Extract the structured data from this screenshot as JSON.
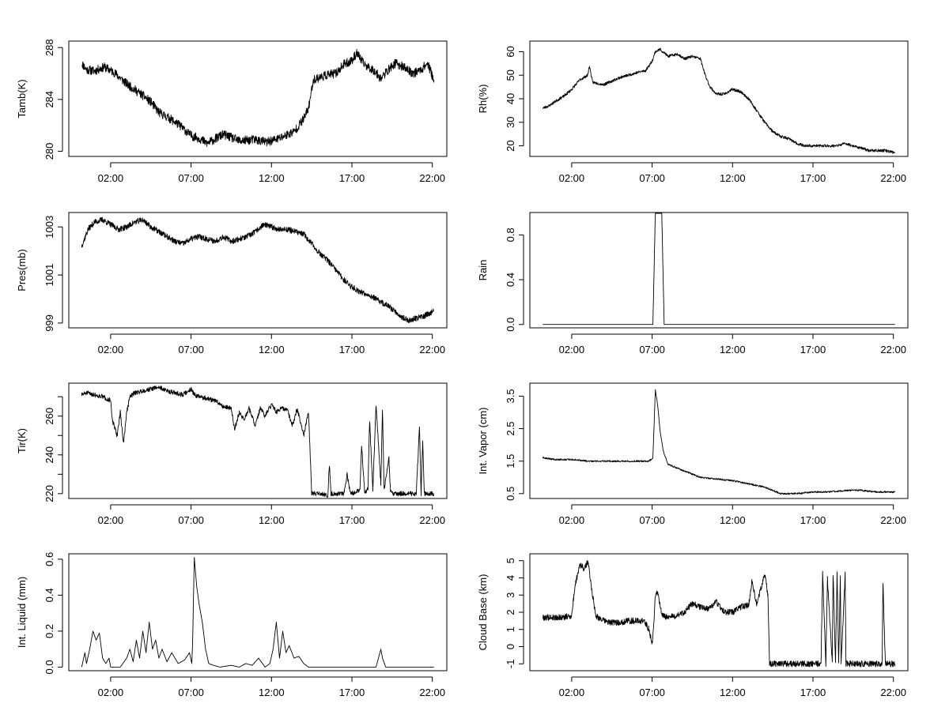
{
  "chart_data": [
    {
      "type": "line",
      "id": "tamb",
      "ylabel": "Tamb(K)",
      "x_tick_labels": [
        "02:00",
        "07:00",
        "12:00",
        "17:00",
        "22:00"
      ],
      "x_ticks": [
        2,
        7,
        12,
        17,
        22
      ],
      "xlim": [
        -0.6,
        22.9
      ],
      "y_ticks": [
        280,
        284,
        288
      ],
      "ylim": [
        279.6,
        288.5
      ],
      "noise": 0.35,
      "seed": 11,
      "series": [
        {
          "name": "Tamb",
          "x": [
            0.2,
            0.5,
            1,
            1.6,
            2.2,
            3,
            4,
            4.5,
            5,
            5.7,
            6.3,
            7,
            7.5,
            8,
            9,
            10,
            11,
            11.7,
            12.5,
            13,
            13.4,
            14,
            14.3,
            14.6,
            15,
            15.5,
            16,
            16.5,
            17,
            17.3,
            17.7,
            18,
            18.4,
            18.8,
            19.2,
            19.7,
            20.2,
            20.8,
            21.3,
            21.7,
            22.1
          ],
          "y": [
            286.8,
            286.3,
            286.2,
            286.5,
            286.1,
            285.2,
            284.3,
            283.8,
            283.0,
            282.5,
            282.0,
            281.2,
            281.0,
            280.6,
            281.3,
            280.8,
            280.9,
            280.7,
            281.0,
            281.3,
            281.5,
            282.5,
            283.3,
            285.5,
            285.7,
            285.9,
            286.0,
            286.7,
            287.0,
            287.6,
            286.8,
            286.5,
            286.2,
            285.6,
            286.2,
            286.8,
            286.5,
            286.0,
            286.3,
            286.8,
            285.5
          ]
        }
      ]
    },
    {
      "type": "line",
      "id": "rh",
      "ylabel": "Rh(%)",
      "x_tick_labels": [
        "02:00",
        "07:00",
        "12:00",
        "17:00",
        "22:00"
      ],
      "x_ticks": [
        2,
        7,
        12,
        17,
        22
      ],
      "xlim": [
        -0.6,
        22.9
      ],
      "y_ticks": [
        20,
        30,
        40,
        50,
        60
      ],
      "ylim": [
        15.5,
        64.5
      ],
      "noise": 0.6,
      "seed": 23,
      "series": [
        {
          "name": "Rh",
          "x": [
            0.2,
            0.6,
            1,
            1.5,
            2,
            2.5,
            3,
            3.1,
            3.3,
            4,
            5,
            6,
            6.6,
            7,
            7.2,
            7.5,
            8,
            8.6,
            9,
            9.5,
            10,
            10.3,
            10.6,
            11,
            11.5,
            12,
            12.5,
            13,
            13.5,
            14,
            14.5,
            15,
            15.5,
            16,
            16.5,
            17,
            17.5,
            18,
            18.5,
            19,
            19.5,
            20,
            20.5,
            21,
            21.5,
            22.1
          ],
          "y": [
            36,
            37,
            39,
            41,
            44,
            48,
            50,
            54,
            47,
            46,
            49,
            51,
            52,
            56,
            60,
            61,
            58,
            59,
            57,
            58,
            57,
            50,
            45,
            42,
            42,
            44,
            43,
            40,
            35,
            30,
            26,
            24,
            23,
            21,
            20,
            20,
            20,
            20,
            20,
            21,
            20,
            19,
            18,
            18,
            18,
            17
          ]
        }
      ]
    },
    {
      "type": "line",
      "id": "pres",
      "ylabel": "Pres(mb)",
      "x_tick_labels": [
        "02:00",
        "07:00",
        "12:00",
        "17:00",
        "22:00"
      ],
      "x_ticks": [
        2,
        7,
        12,
        17,
        22
      ],
      "xlim": [
        -0.6,
        22.9
      ],
      "y_ticks": [
        999,
        1001,
        1003
      ],
      "ylim": [
        998.8,
        1003.6
      ],
      "noise": 0.12,
      "seed": 37,
      "series": [
        {
          "name": "Pres",
          "x": [
            0.2,
            0.6,
            1,
            1.5,
            2,
            2.5,
            3,
            3.5,
            4,
            4.5,
            5,
            5.5,
            6,
            6.5,
            7,
            7.5,
            8,
            8.5,
            9,
            9.5,
            10,
            10.5,
            11,
            11.5,
            12,
            12.5,
            13,
            13.5,
            14,
            14.5,
            15,
            15.5,
            16,
            16.5,
            17,
            17.5,
            18,
            18.5,
            19,
            19.5,
            20,
            20.5,
            21,
            21.5,
            22.1
          ],
          "y": [
            1002.2,
            1002.9,
            1003.2,
            1003.3,
            1003.1,
            1002.9,
            1003.0,
            1003.2,
            1003.3,
            1003.0,
            1002.8,
            1002.6,
            1002.4,
            1002.3,
            1002.5,
            1002.6,
            1002.5,
            1002.4,
            1002.6,
            1002.4,
            1002.5,
            1002.6,
            1002.8,
            1003.1,
            1003.0,
            1002.9,
            1002.9,
            1002.8,
            1002.7,
            1002.3,
            1001.9,
            1001.6,
            1001.2,
            1000.8,
            1000.5,
            1000.3,
            1000.2,
            1000.0,
            999.8,
            999.6,
            999.3,
            999.1,
            999.2,
            999.3,
            999.5
          ]
        }
      ]
    },
    {
      "type": "line",
      "id": "rain",
      "ylabel": "Rain",
      "x_tick_labels": [
        "02:00",
        "07:00",
        "12:00",
        "17:00",
        "22:00"
      ],
      "x_ticks": [
        2,
        7,
        12,
        17,
        22
      ],
      "xlim": [
        -0.6,
        22.9
      ],
      "y_ticks": [
        0.0,
        0.4,
        0.8
      ],
      "ylim": [
        -0.03,
        1.0
      ],
      "y_tick_labels": [
        "0.0",
        "0.4",
        "0.8"
      ],
      "noise": 0,
      "seed": 1,
      "series": [
        {
          "name": "Rain",
          "x": [
            0.2,
            7.05,
            7.2,
            7.6,
            7.75,
            22.1
          ],
          "y": [
            0,
            0,
            1,
            1,
            0,
            0
          ]
        }
      ]
    },
    {
      "type": "line",
      "id": "tir",
      "ylabel": "Tir(K)",
      "x_tick_labels": [
        "02:00",
        "07:00",
        "12:00",
        "17:00",
        "22:00"
      ],
      "x_ticks": [
        2,
        7,
        12,
        17,
        22
      ],
      "xlim": [
        -0.6,
        22.9
      ],
      "y_ticks": [
        220,
        240,
        260
      ],
      "ylim": [
        217.5,
        277
      ],
      "y_minor_ticks": [
        230,
        250,
        270
      ],
      "noise": 1.2,
      "seed": 51,
      "series": [
        {
          "name": "Tir",
          "x": [
            0.2,
            0.5,
            1,
            1.5,
            2,
            2.1,
            2.4,
            2.6,
            2.8,
            3,
            3.2,
            3.5,
            4,
            4.5,
            5,
            5.5,
            6,
            6.5,
            7,
            7.2,
            7.5,
            8,
            8.5,
            9,
            9.5,
            9.7,
            10,
            10.3,
            10.6,
            11,
            11.3,
            11.6,
            12,
            12.3,
            12.6,
            13,
            13.3,
            13.6,
            14,
            14.3,
            14.5,
            15,
            15.5,
            15.6,
            15.7,
            16,
            16.5,
            16.7,
            16.9,
            17,
            17.5,
            17.6,
            17.8,
            18,
            18.1,
            18.3,
            18.5,
            18.8,
            18.9,
            19,
            19.3,
            19.4,
            19.6,
            20,
            20.5,
            21,
            21.2,
            21.3,
            21.4,
            21.5,
            22,
            22.1
          ],
          "y": [
            271,
            272,
            271,
            270,
            268,
            258,
            250,
            262,
            246,
            262,
            270,
            272,
            273,
            274,
            275,
            273,
            272,
            271,
            274,
            271,
            270,
            269,
            268,
            265,
            264,
            253,
            262,
            258,
            264,
            255,
            264,
            260,
            266,
            262,
            264,
            263,
            255,
            264,
            250,
            262,
            220,
            220,
            219,
            235,
            220,
            220,
            220,
            230,
            220,
            220,
            222,
            245,
            220,
            223,
            258,
            222,
            266,
            225,
            264,
            222,
            238,
            221,
            220,
            220,
            220,
            220,
            254,
            220,
            248,
            220,
            220,
            219
          ]
        }
      ]
    },
    {
      "type": "line",
      "id": "vapor",
      "ylabel": "Int. Vapor (cm)",
      "x_tick_labels": [
        "02:00",
        "07:00",
        "12:00",
        "17:00",
        "22:00"
      ],
      "x_ticks": [
        2,
        7,
        12,
        17,
        22
      ],
      "xlim": [
        -0.6,
        22.9
      ],
      "y_ticks": [
        0.5,
        1.5,
        2.5,
        3.5
      ],
      "ylim": [
        0.35,
        3.9
      ],
      "y_tick_labels": [
        "0.5",
        "1.5",
        "2.5",
        "3.5"
      ],
      "noise": 0.025,
      "seed": 63,
      "series": [
        {
          "name": "Int. Vapor",
          "x": [
            0.2,
            1,
            2,
            3,
            4,
            5,
            6,
            6.8,
            7.05,
            7.2,
            7.35,
            7.5,
            7.7,
            8,
            8.5,
            9,
            10,
            11,
            12,
            13,
            14,
            14.5,
            15,
            16,
            17,
            18,
            19,
            20,
            21,
            22.1
          ],
          "y": [
            1.6,
            1.55,
            1.55,
            1.5,
            1.5,
            1.5,
            1.5,
            1.5,
            1.6,
            3.7,
            3.2,
            2.4,
            1.8,
            1.4,
            1.3,
            1.2,
            1.0,
            0.95,
            0.9,
            0.8,
            0.7,
            0.6,
            0.5,
            0.5,
            0.55,
            0.55,
            0.6,
            0.6,
            0.55,
            0.55
          ]
        }
      ]
    },
    {
      "type": "line",
      "id": "liquid",
      "ylabel": "Int. Liquid (mm)",
      "x_tick_labels": [
        "02:00",
        "07:00",
        "12:00",
        "17:00",
        "22:00"
      ],
      "x_ticks": [
        2,
        7,
        12,
        17,
        22
      ],
      "xlim": [
        -0.6,
        22.9
      ],
      "y_ticks": [
        0.0,
        0.2,
        0.4,
        0.6
      ],
      "ylim": [
        -0.02,
        0.63
      ],
      "y_tick_labels": [
        "0.0",
        "0.2",
        "0.4",
        "0.6"
      ],
      "noise": 0,
      "seed": 1,
      "series": [
        {
          "name": "Int. Liquid",
          "x": [
            0.2,
            0.4,
            0.5,
            0.7,
            0.9,
            1.1,
            1.3,
            1.5,
            1.7,
            1.9,
            2.0,
            2.2,
            2.6,
            3,
            3.2,
            3.4,
            3.6,
            3.8,
            4,
            4.2,
            4.4,
            4.6,
            4.8,
            5,
            5.2,
            5.5,
            5.8,
            6.2,
            6.6,
            6.9,
            7.05,
            7.1,
            7.2,
            7.35,
            7.5,
            7.7,
            7.9,
            8.1,
            8.4,
            8.8,
            9.5,
            10,
            10.4,
            10.8,
            11.2,
            11.6,
            11.9,
            12.1,
            12.3,
            12.5,
            12.7,
            12.9,
            13.1,
            13.4,
            13.7,
            14,
            14.3,
            14.8,
            16,
            17,
            18.5,
            18.8,
            18.9,
            19.1,
            19.5,
            21,
            22.1
          ],
          "y": [
            0,
            0.08,
            0.02,
            0.1,
            0.2,
            0.15,
            0.19,
            0.05,
            0.02,
            0.05,
            0,
            0,
            0,
            0.05,
            0.1,
            0.03,
            0.15,
            0.05,
            0.2,
            0.08,
            0.25,
            0.1,
            0.15,
            0.05,
            0.1,
            0.03,
            0.08,
            0.02,
            0.04,
            0.08,
            0.02,
            0.15,
            0.61,
            0.45,
            0.35,
            0.25,
            0.1,
            0.02,
            0.01,
            0,
            0.01,
            0,
            0.02,
            0.01,
            0.05,
            0,
            0.02,
            0.1,
            0.25,
            0.05,
            0.2,
            0.08,
            0.12,
            0.05,
            0.06,
            0.02,
            0,
            0,
            0,
            0,
            0,
            0.1,
            0.05,
            0,
            0,
            0,
            0
          ]
        }
      ]
    },
    {
      "type": "line",
      "id": "cloud",
      "ylabel": "Cloud Base (km)",
      "x_tick_labels": [
        "02:00",
        "07:00",
        "12:00",
        "17:00",
        "22:00"
      ],
      "x_ticks": [
        2,
        7,
        12,
        17,
        22
      ],
      "xlim": [
        -0.6,
        22.9
      ],
      "y_ticks": [
        -1,
        0,
        1,
        2,
        3,
        4,
        5
      ],
      "ylim": [
        -1.4,
        5.4
      ],
      "noise": 0.18,
      "seed": 79,
      "series": [
        {
          "name": "Cloud Base",
          "x": [
            0.2,
            0.8,
            1.5,
            2,
            2.2,
            2.5,
            2.8,
            3,
            3.3,
            3.5,
            4,
            4.5,
            5,
            5.5,
            6,
            6.5,
            6.8,
            7,
            7.1,
            7.2,
            7.35,
            7.6,
            8,
            8.5,
            9,
            9.5,
            10,
            10.5,
            11,
            11.5,
            12,
            12.5,
            13,
            13.2,
            13.5,
            14,
            14.2,
            14.3,
            17.5,
            17.6,
            17.8,
            17.9,
            18.2,
            18.25,
            18.4,
            18.5,
            18.6,
            18.7,
            18.75,
            19.0,
            19.05,
            21.3,
            21.35,
            21.5,
            21.55,
            22.1
          ],
          "y": [
            1.7,
            1.7,
            1.7,
            1.8,
            3.5,
            4.8,
            4.5,
            5.0,
            3.0,
            1.8,
            1.5,
            1.4,
            1.4,
            1.5,
            1.5,
            1.5,
            1.0,
            0.2,
            1.2,
            3.0,
            3.2,
            1.8,
            1.7,
            1.8,
            2.0,
            2.5,
            2.3,
            2.2,
            2.6,
            2.0,
            2.0,
            2.3,
            2.4,
            3.8,
            2.5,
            4.2,
            3.0,
            -1,
            -1,
            4.2,
            -1,
            4.0,
            -1,
            4.3,
            -1,
            4.3,
            -1,
            4.2,
            -1,
            4.2,
            -1,
            -1,
            3.8,
            -1,
            -1,
            -1
          ]
        }
      ]
    }
  ]
}
